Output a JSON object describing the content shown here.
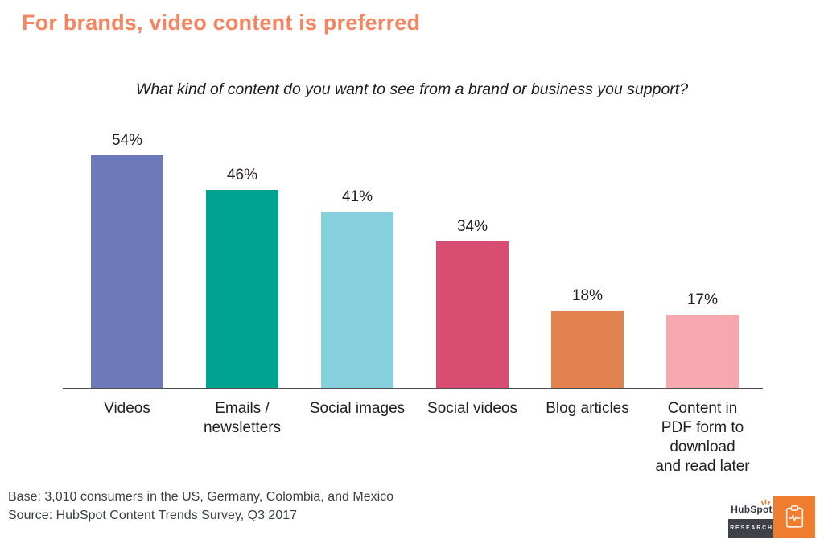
{
  "header": {
    "title": "For brands, video content is preferred",
    "title_color": "#f48560"
  },
  "chart_data": {
    "type": "bar",
    "title": "What kind of content do you want to see from a brand or business you support?",
    "categories": [
      "Videos",
      "Emails / newsletters",
      "Social images",
      "Social videos",
      "Blog articles",
      "Content in PDF form to download and read later"
    ],
    "category_lines": [
      [
        "Videos"
      ],
      [
        "Emails /",
        "newsletters"
      ],
      [
        "Social images"
      ],
      [
        "Social videos"
      ],
      [
        "Blog articles"
      ],
      [
        "Content in",
        "PDF form to",
        "download",
        "and read later"
      ]
    ],
    "values": [
      54,
      46,
      41,
      34,
      18,
      17
    ],
    "value_labels": [
      "54%",
      "46%",
      "41%",
      "34%",
      "18%",
      "17%"
    ],
    "bar_colors": [
      "#6d79b8",
      "#00a390",
      "#85d0dc",
      "#d84e72",
      "#e2824f",
      "#f7a8ae"
    ],
    "xlabel": "",
    "ylabel": "",
    "ylim": [
      0,
      60
    ],
    "grid": false,
    "legend": false
  },
  "footer": {
    "base": "Base: 3,010 consumers in the US, Germany, Colombia, and Mexico",
    "source": "Source: HubSpot Content Trends Survey, Q3 2017"
  },
  "logo": {
    "brand_prefix": "HubSp",
    "brand_o": "o",
    "brand_suffix": "t",
    "sub": "RESEARCH",
    "tile_color": "#f07c30",
    "box_color": "#3e4147",
    "sprocket_color": "#f07c30"
  }
}
